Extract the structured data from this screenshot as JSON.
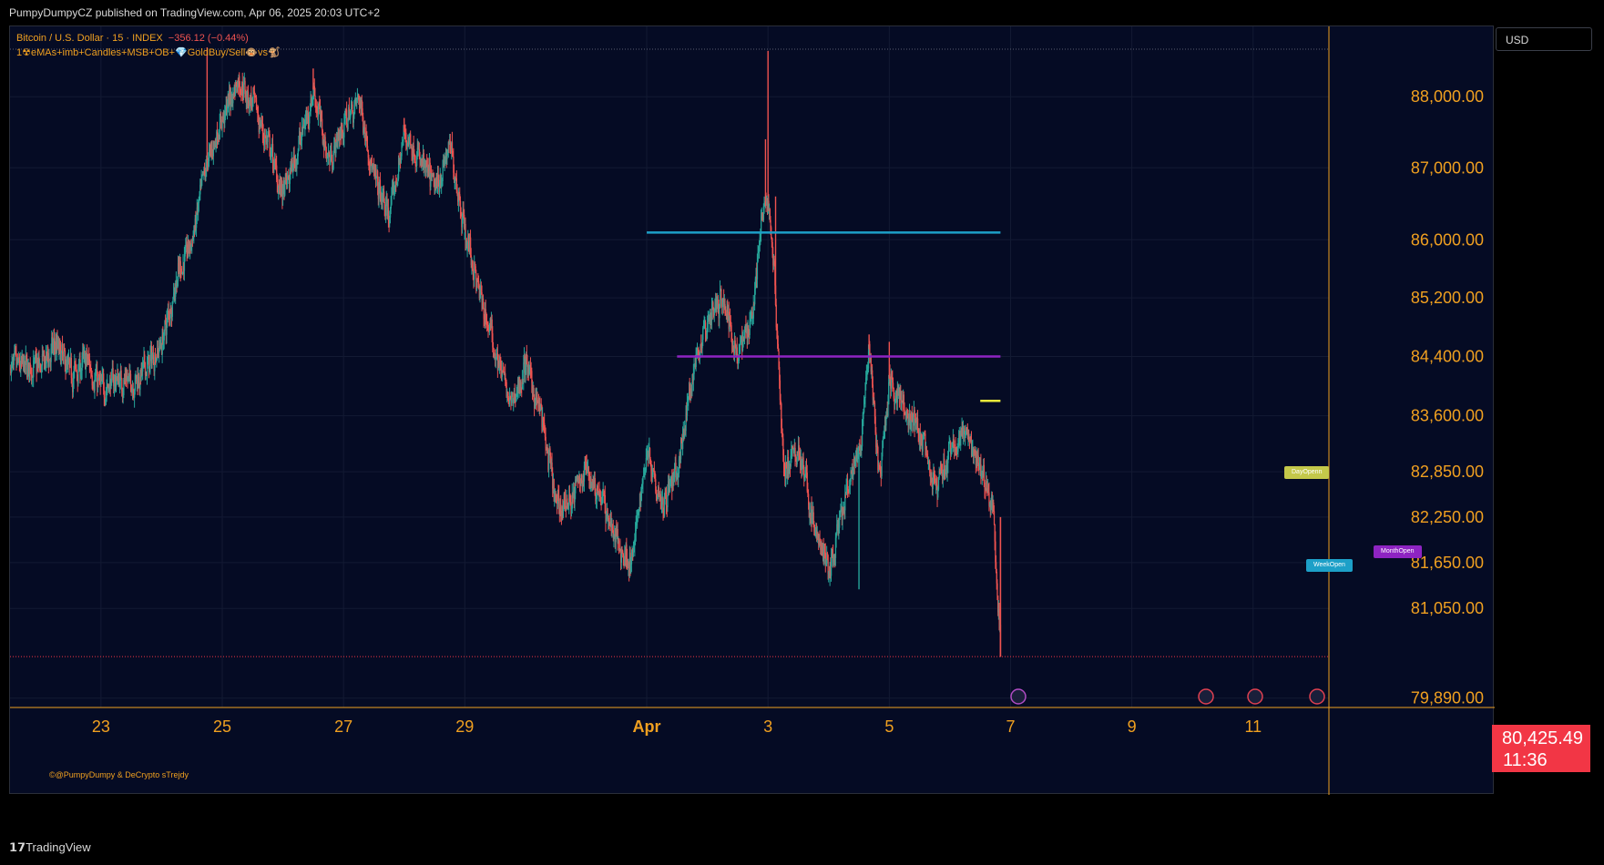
{
  "header": {
    "publisher_line": "PumpyDumpyCZ published on TradingView.com, Apr 06, 2025 20:03 UTC+2"
  },
  "legend": {
    "symbol_line": "Bitcoin / U.S. Dollar · 15 · INDEX",
    "change": "−356.12 (−0.44%)",
    "indicator_line": "1☢eMAs+imb+Candles+MSB+OB+💎GoldBuy/Sell🐵vs🐒"
  },
  "currency_selector": {
    "label": "USD"
  },
  "last_price": {
    "value": "80,425.49",
    "countdown": "11:36"
  },
  "copyright": "©@PumpyDumpy & DeCrypto sTrejdy",
  "footer": {
    "brand": "TradingView"
  },
  "badges": {
    "day_open": "DayOpenn",
    "week_open": "WeekOpen",
    "month_open": "MonthOpen"
  },
  "colors": {
    "background": "#050b24",
    "up_candle": "#26a69a",
    "down_candle": "#ef5350",
    "axis_text": "#f0a020",
    "week_open_line": "#1da0c8",
    "month_open_line": "#8e24c2",
    "day_open_line": "#e8e83a",
    "last_price": "#f23645"
  },
  "chart_data": {
    "type": "candlestick",
    "title": "Bitcoin / U.S. Dollar · 15 · INDEX",
    "xlabel": "",
    "ylabel": "",
    "x_ticks": [
      "23",
      "25",
      "27",
      "29",
      "Apr",
      "3",
      "5",
      "7",
      "9",
      "11"
    ],
    "y_ticks": [
      "88,000.00",
      "87,000.00",
      "86,000.00",
      "85,200.00",
      "84,400.00",
      "83,600.00",
      "82,850.00",
      "82,250.00",
      "81,650.00",
      "81,050.00",
      "79,890.00"
    ],
    "y_tick_values": [
      88000,
      87000,
      86000,
      85200,
      84400,
      83600,
      82850,
      82250,
      81650,
      81050,
      79890
    ],
    "y_scale": "log",
    "ylim": [
      79770,
      89000
    ],
    "x_range_days": [
      "Mar 21 12:00",
      "Apr 12 06:00"
    ],
    "grid": true,
    "legend": "top-left",
    "path_anchors": [
      [
        "Mar 22 00:00",
        84250
      ],
      [
        "Mar 22 06:00",
        84550
      ],
      [
        "Mar 22 12:00",
        84150
      ],
      [
        "Mar 22 18:00",
        84350
      ],
      [
        "Mar 23 00:00",
        83950
      ],
      [
        "Mar 23 06:00",
        84100
      ],
      [
        "Mar 23 12:00",
        84050
      ],
      [
        "Mar 23 18:00",
        84250
      ],
      [
        "Mar 24 00:00",
        84600
      ],
      [
        "Mar 24 06:00",
        85500
      ],
      [
        "Mar 24 12:00",
        86000
      ],
      [
        "Mar 24 18:00",
        87100
      ],
      [
        "Mar 25 00:00",
        87700
      ],
      [
        "Mar 25 06:00",
        88250
      ],
      [
        "Mar 25 12:00",
        87900
      ],
      [
        "Mar 25 18:00",
        87300
      ],
      [
        "Mar 26 00:00",
        86600
      ],
      [
        "Mar 26 06:00",
        87300
      ],
      [
        "Mar 26 12:00",
        88100
      ],
      [
        "Mar 26 18:00",
        87100
      ],
      [
        "Mar 27 00:00",
        87600
      ],
      [
        "Mar 27 06:00",
        88000
      ],
      [
        "Mar 27 12:00",
        86800
      ],
      [
        "Mar 27 18:00",
        86300
      ],
      [
        "Mar 28 00:00",
        87500
      ],
      [
        "Mar 28 06:00",
        87100
      ],
      [
        "Mar 28 12:00",
        86700
      ],
      [
        "Mar 28 18:00",
        87300
      ],
      [
        "Mar 29 00:00",
        86100
      ],
      [
        "Mar 29 06:00",
        85200
      ],
      [
        "Mar 29 12:00",
        84500
      ],
      [
        "Mar 29 18:00",
        83700
      ],
      [
        "Mar 30 00:00",
        84300
      ],
      [
        "Mar 30 06:00",
        83600
      ],
      [
        "Mar 30 12:00",
        82350
      ],
      [
        "Mar 30 18:00",
        82500
      ],
      [
        "Mar 31 00:00",
        82900
      ],
      [
        "Mar 31 06:00",
        82500
      ],
      [
        "Mar 31 12:00",
        81900
      ],
      [
        "Mar 31 18:00",
        81650
      ],
      [
        "Apr 01 00:00",
        83200
      ],
      [
        "Apr 01 06:00",
        82450
      ],
      [
        "Apr 01 12:00",
        82800
      ],
      [
        "Apr 01 18:00",
        84200
      ],
      [
        "Apr 02 00:00",
        84900
      ],
      [
        "Apr 02 06:00",
        85200
      ],
      [
        "Apr 02 12:00",
        84400
      ],
      [
        "Apr 02 18:00",
        85100
      ],
      [
        "Apr 02 21:00",
        86200
      ],
      [
        "Apr 03 00:00",
        86600
      ],
      [
        "Apr 03 03:00",
        85100
      ],
      [
        "Apr 03 06:00",
        82800
      ],
      [
        "Apr 03 12:00",
        83200
      ],
      [
        "Apr 03 18:00",
        82100
      ],
      [
        "Apr 04 00:00",
        81500
      ],
      [
        "Apr 04 06:00",
        82400
      ],
      [
        "Apr 04 12:00",
        83100
      ],
      [
        "Apr 04 16:00",
        84500
      ],
      [
        "Apr 04 20:00",
        82700
      ],
      [
        "Apr 05 00:00",
        84100
      ],
      [
        "Apr 05 06:00",
        83700
      ],
      [
        "Apr 05 12:00",
        83300
      ],
      [
        "Apr 05 18:00",
        82600
      ],
      [
        "Apr 06 00:00",
        83100
      ],
      [
        "Apr 06 06:00",
        83400
      ],
      [
        "Apr 06 12:00",
        82900
      ],
      [
        "Apr 06 17:00",
        82300
      ],
      [
        "Apr 06 20:00",
        80425
      ]
    ],
    "spikes": [
      [
        "Mar 24 18:00",
        88700
      ],
      [
        "Mar 26 12:00",
        88400
      ],
      [
        "Mar 28 00:00",
        87700
      ],
      [
        "Mar 29 00:00",
        86000
      ],
      [
        "Apr 02 23:00",
        87400
      ],
      [
        "Apr 03 00:00",
        88650
      ],
      [
        "Apr 03 03:00",
        86600
      ],
      [
        "Apr 04 12:00",
        81300
      ],
      [
        "Apr 04 16:00",
        84700
      ],
      [
        "Apr 05 00:00",
        84600
      ],
      [
        "Apr 01 06:00",
        82300
      ]
    ],
    "levels": [
      {
        "name": "WeekOpen",
        "value": 86100,
        "from": "Apr 01 00:00",
        "to": "Apr 06 20:00"
      },
      {
        "name": "MonthOpen",
        "value": 84400,
        "from": "Apr 01 12:00",
        "to": "Apr 06 20:00"
      },
      {
        "name": "DayOpenn",
        "value": 83800,
        "from": "Apr 06 12:00",
        "to": "Apr 06 20:00"
      }
    ],
    "last_price": 80425.49
  }
}
